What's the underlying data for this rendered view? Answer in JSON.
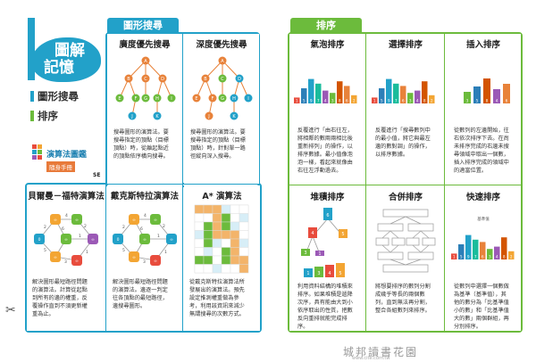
{
  "cover": {
    "badge_line1": "圖解",
    "badge_line2": "記憶",
    "menu": [
      {
        "label": "圖形搜尋",
        "color": "#22a1c9"
      },
      {
        "label": "排序",
        "color": "#6cbb3c"
      }
    ],
    "book_title": "演算法圖鑑",
    "book_subtitle": "隨身手冊",
    "publisher": "SE"
  },
  "sections": {
    "graph_search": {
      "tab": "圖形搜尋",
      "color": "#22a1c9"
    },
    "sorting": {
      "tab": "排序",
      "color": "#6cbb3c"
    }
  },
  "panels": {
    "bfs": {
      "title": "廣度優先搜尋",
      "desc": [
        "搜尋圖形的演算法。要",
        "搜尋指定的頂點（目標",
        "頂點）時，從離起點近",
        "的頂點依序橫向搜尋。"
      ]
    },
    "dfs": {
      "title": "深度優先搜尋",
      "desc": [
        "搜尋圖形的演算法。要",
        "搜尋指定的頂點（目標",
        "頂點）時，針對單一路",
        "徑縱向深入搜尋。"
      ]
    },
    "bellman": {
      "title": "貝爾曼－福特演算法",
      "desc": [
        "解決圖形最短路徑問題",
        "的演算法。計算從起點",
        "到所有的邊的權重，反",
        "覆操作直到不須更新權",
        "重為止。"
      ]
    },
    "dijkstra": {
      "title": "戴克斯特拉演算法",
      "desc": [
        "解決圖形最短路徑問題",
        "的演算法。邊逐一判定",
        "往各頂點的最短路徑，",
        "邊搜尋圖形。"
      ]
    },
    "astar": {
      "title": "A* 演算法",
      "desc": [
        "從戴克斯特拉演算法所",
        "發展出的演算法。預先",
        "設定推測權重做為參",
        "考，利用該資訊來減少",
        "無謂搜尋的次數方式。"
      ]
    },
    "bubble": {
      "title": "氣泡排序",
      "desc": [
        "反覆進行「由右往左，",
        "將相鄰的數兩兩相比後",
        "重新排列」的操作，以",
        "排序數據。最小值像泡",
        "泡一樣，看起來就像由",
        "右往左浮動過去。"
      ]
    },
    "selection": {
      "title": "選擇排序",
      "desc": [
        "反覆進行「搜尋數列中",
        "的最小值，將它與最左",
        "邊的數對調」的操作，",
        "以排序數據。"
      ]
    },
    "insertion": {
      "title": "插入排序",
      "desc": [
        "從數列的左邊開始，往",
        "右依次排序下去。在尚",
        "未排序完成的右邊未搜",
        "尋領域中取出一個數，",
        "插入排序完成的領域中",
        "的適當位置。"
      ]
    },
    "heap": {
      "title": "堆積排序",
      "desc": [
        "利用資料結構的堆積來",
        "排序。如果堆積是遞降",
        "次序，具有能由大到小",
        "依序取出的性質，把數",
        "反向重排就能完成排",
        "序。"
      ]
    },
    "merge": {
      "title": "合併排序",
      "desc": [
        "將想要排序的數列分割",
        "成幾乎等長的兩個數",
        "列，直到無法再分割，",
        "整合各組數列來排序。"
      ]
    },
    "quick": {
      "title": "快速排序",
      "desc": [
        "從數列中選擇一個數做",
        "為基準（基準值），其",
        "他的數分為「比基準值",
        "小的數」和「比基準值",
        "大的數」兩個群組，再",
        "分別排序。"
      ]
    }
  },
  "diagrams": {
    "tree_labels": [
      "A",
      "B",
      "C",
      "D",
      "E",
      "F",
      "G",
      "H",
      "I",
      "J",
      "K"
    ],
    "graph_labels": [
      "A",
      "B",
      "C",
      "D",
      "E",
      "F",
      "G"
    ],
    "weights": [
      "2",
      "5",
      "4",
      "6",
      "2",
      "1",
      "3",
      "1",
      "3",
      "2",
      "5"
    ],
    "dist_labels": [
      "0",
      "∞",
      "∞",
      "∞",
      "∞",
      "∞",
      "∞"
    ],
    "bubble_numbers": [
      "1",
      "5",
      "9",
      "7",
      "4",
      "3",
      "8",
      "6",
      "2"
    ],
    "selection_numbers": [
      "1",
      "5",
      "9",
      "7",
      "6",
      "3",
      "4",
      "8",
      "2"
    ],
    "insert_numbers": [
      "3",
      "5",
      "8",
      "4",
      "6"
    ],
    "heap_numbers": [
      "5",
      "1",
      "3",
      "4",
      "6"
    ],
    "quick_label": "基準值"
  },
  "misc": {
    "scissor": "✂",
    "watermark": "城邦讀書花園",
    "watermark_url": "www.cite.com.tw"
  }
}
